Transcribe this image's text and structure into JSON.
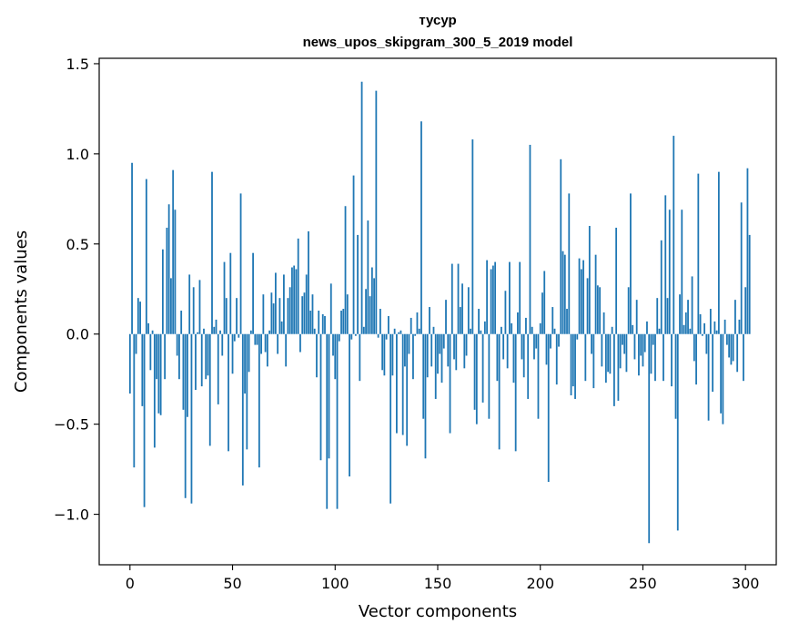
{
  "chart_data": {
    "type": "bar",
    "title": "тусур",
    "subtitle": "news_upos_skipgram_300_5_2019 model",
    "xlabel": "Vector components",
    "ylabel": "Components values",
    "xlim": [
      -15,
      315
    ],
    "ylim": [
      -1.28,
      1.53
    ],
    "xticks": [
      0,
      50,
      100,
      150,
      200,
      250,
      300
    ],
    "xtick_labels": [
      "0",
      "50",
      "100",
      "150",
      "200",
      "250",
      "300"
    ],
    "yticks": [
      -1.0,
      -0.5,
      0.0,
      0.5,
      1.0,
      1.5
    ],
    "ytick_labels": [
      "−1.0",
      "−0.5",
      "0.0",
      "0.5",
      "1.0",
      "1.5"
    ],
    "grid": false,
    "bar_color": "#1f77b4",
    "values": [
      -0.33,
      0.95,
      -0.74,
      -0.11,
      0.2,
      0.18,
      -0.4,
      -0.96,
      0.86,
      0.06,
      -0.2,
      0.02,
      -0.63,
      -0.25,
      -0.44,
      -0.45,
      0.47,
      -0.25,
      0.59,
      0.72,
      0.31,
      0.91,
      0.69,
      -0.12,
      -0.25,
      0.13,
      -0.42,
      -0.91,
      -0.46,
      0.33,
      -0.94,
      0.26,
      -0.31,
      0.01,
      0.3,
      -0.29,
      0.03,
      -0.25,
      -0.23,
      -0.62,
      0.9,
      0.04,
      0.08,
      -0.39,
      0.02,
      -0.12,
      0.4,
      0.2,
      -0.65,
      0.45,
      -0.22,
      -0.04,
      0.2,
      -0.02,
      0.78,
      -0.84,
      -0.33,
      -0.64,
      -0.21,
      0.02,
      0.45,
      -0.06,
      -0.06,
      -0.74,
      -0.11,
      0.22,
      -0.1,
      -0.18,
      0.02,
      0.23,
      0.17,
      0.34,
      -0.11,
      0.2,
      0.07,
      0.33,
      -0.18,
      0.2,
      0.26,
      0.37,
      0.38,
      0.36,
      0.53,
      -0.1,
      0.21,
      0.23,
      0.33,
      0.57,
      0.13,
      0.22,
      0.03,
      -0.24,
      0.13,
      -0.7,
      0.11,
      0.1,
      -0.97,
      -0.69,
      0.28,
      -0.12,
      -0.25,
      -0.97,
      -0.04,
      0.13,
      0.14,
      0.71,
      0.22,
      -0.79,
      -0.03,
      0.88,
      -0.01,
      0.55,
      -0.26,
      1.4,
      0.04,
      0.25,
      0.63,
      0.21,
      0.37,
      0.31,
      1.35,
      -0.02,
      0.14,
      -0.2,
      -0.23,
      -0.03,
      0.1,
      -0.94,
      -0.23,
      0.03,
      -0.55,
      0.01,
      0.02,
      -0.56,
      -0.18,
      -0.62,
      -0.11,
      0.09,
      -0.25,
      -0.01,
      0.12,
      0.03,
      1.18,
      -0.47,
      -0.69,
      -0.24,
      0.15,
      -0.18,
      0.04,
      -0.36,
      -0.22,
      -0.11,
      -0.27,
      -0.08,
      0.19,
      -0.18,
      -0.55,
      0.39,
      -0.14,
      -0.2,
      0.39,
      0.15,
      0.28,
      -0.19,
      -0.12,
      0.26,
      0.03,
      1.08,
      -0.42,
      -0.5,
      0.14,
      0.02,
      -0.38,
      0.07,
      0.41,
      -0.47,
      0.36,
      0.38,
      0.4,
      -0.26,
      -0.64,
      0.04,
      -0.14,
      0.24,
      -0.19,
      0.4,
      0.06,
      -0.27,
      -0.65,
      0.12,
      0.4,
      -0.14,
      -0.24,
      0.09,
      -0.36,
      1.05,
      0.04,
      -0.14,
      -0.08,
      -0.47,
      0.06,
      0.23,
      0.35,
      -0.17,
      -0.82,
      -0.08,
      0.15,
      0.03,
      -0.28,
      -0.07,
      0.97,
      0.46,
      0.44,
      0.14,
      0.78,
      -0.34,
      -0.29,
      -0.36,
      -0.03,
      0.42,
      0.36,
      0.41,
      -0.26,
      0.31,
      0.6,
      -0.11,
      -0.3,
      0.44,
      0.27,
      0.26,
      -0.18,
      0.12,
      -0.27,
      -0.21,
      -0.22,
      0.04,
      -0.4,
      0.59,
      -0.37,
      -0.19,
      -0.06,
      -0.11,
      -0.21,
      0.26,
      0.78,
      0.05,
      -0.14,
      0.19,
      -0.23,
      -0.12,
      -0.18,
      -0.1,
      0.07,
      -1.16,
      -0.22,
      -0.06,
      -0.26,
      0.2,
      0.03,
      0.52,
      -0.26,
      0.77,
      0.2,
      0.69,
      -0.29,
      1.1,
      -0.47,
      -1.09,
      0.22,
      0.69,
      0.05,
      0.12,
      0.19,
      0.03,
      0.32,
      -0.15,
      -0.28,
      0.89,
      0.11,
      -0.01,
      0.06,
      -0.11,
      -0.48,
      0.14,
      -0.32,
      0.07,
      0.02,
      0.9,
      -0.44,
      -0.5,
      0.08,
      -0.06,
      -0.13,
      -0.17,
      -0.15,
      0.19,
      -0.21,
      0.08,
      0.73,
      -0.26,
      0.26,
      0.92,
      0.55
    ]
  }
}
